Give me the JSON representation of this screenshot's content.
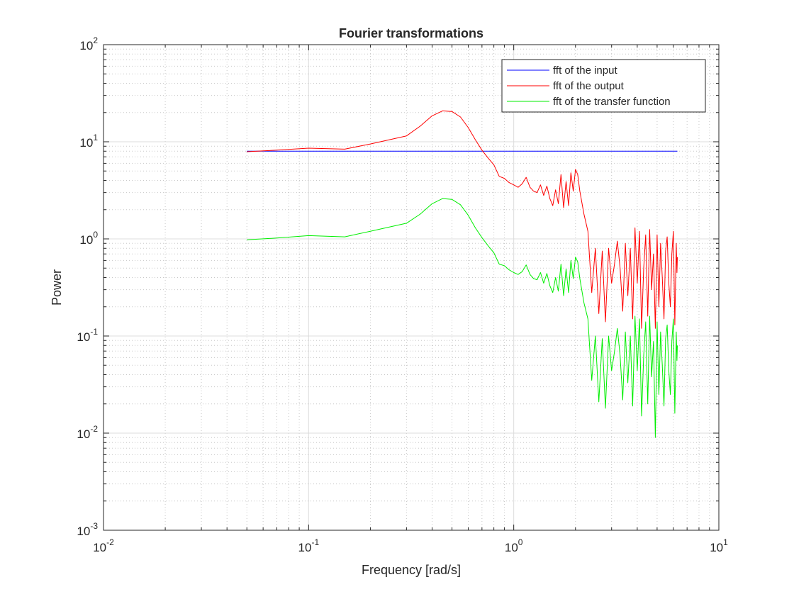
{
  "chart_data": {
    "type": "line",
    "title": "Fourier transformations",
    "xlabel": "Frequency [rad/s]",
    "ylabel": "Power",
    "xscale": "log",
    "yscale": "log",
    "xlim": [
      0.01,
      10
    ],
    "ylim": [
      0.001,
      100
    ],
    "grid": true,
    "minor_grid": true,
    "legend_location": "top-right",
    "x_ticks": [
      {
        "value": 0.01,
        "base": "10",
        "exp": "-2"
      },
      {
        "value": 0.1,
        "base": "10",
        "exp": "-1"
      },
      {
        "value": 1,
        "base": "10",
        "exp": "0"
      },
      {
        "value": 10,
        "base": "10",
        "exp": "1"
      }
    ],
    "y_ticks": [
      {
        "value": 0.001,
        "base": "10",
        "exp": "-3"
      },
      {
        "value": 0.01,
        "base": "10",
        "exp": "-2"
      },
      {
        "value": 0.1,
        "base": "10",
        "exp": "-1"
      },
      {
        "value": 1,
        "base": "10",
        "exp": "0"
      },
      {
        "value": 10,
        "base": "10",
        "exp": "1"
      },
      {
        "value": 100,
        "base": "10",
        "exp": "2"
      }
    ],
    "series": [
      {
        "name": "fft of the input",
        "color": "#0000ff",
        "x": [
          0.05,
          6.28
        ],
        "y": [
          8.0,
          8.0
        ]
      },
      {
        "name": "fft of the output",
        "color": "#ff0000",
        "x": [
          0.05,
          0.07,
          0.1,
          0.15,
          0.2,
          0.3,
          0.35,
          0.4,
          0.45,
          0.5,
          0.55,
          0.6,
          0.65,
          0.7,
          0.75,
          0.8,
          0.85,
          0.9,
          0.95,
          1.0,
          1.05,
          1.1,
          1.15,
          1.2,
          1.25,
          1.3,
          1.35,
          1.4,
          1.45,
          1.5,
          1.55,
          1.6,
          1.65,
          1.7,
          1.75,
          1.8,
          1.85,
          1.9,
          1.95,
          2.0,
          2.05,
          2.1,
          2.2,
          2.3,
          2.4,
          2.5,
          2.6,
          2.7,
          2.8,
          2.9,
          3.0,
          3.1,
          3.2,
          3.3,
          3.4,
          3.5,
          3.6,
          3.7,
          3.8,
          3.9,
          4.0,
          4.1,
          4.2,
          4.3,
          4.4,
          4.5,
          4.6,
          4.7,
          4.8,
          4.9,
          5.0,
          5.1,
          5.2,
          5.3,
          5.4,
          5.5,
          5.6,
          5.7,
          5.8,
          5.9,
          6.0,
          6.1,
          6.2,
          6.25,
          6.28
        ],
        "y": [
          7.9,
          8.2,
          8.6,
          8.4,
          9.5,
          11.5,
          14.5,
          18.5,
          20.8,
          20.5,
          18.0,
          14.0,
          10.5,
          8.2,
          6.8,
          5.8,
          4.4,
          4.2,
          3.8,
          3.6,
          3.4,
          3.7,
          4.3,
          3.4,
          3.1,
          3.0,
          3.6,
          2.8,
          3.5,
          2.6,
          2.2,
          3.2,
          2.3,
          4.6,
          2.1,
          3.9,
          2.2,
          4.8,
          3.1,
          5.2,
          4.6,
          3.1,
          1.8,
          1.2,
          0.28,
          0.8,
          0.17,
          0.75,
          0.14,
          0.8,
          0.35,
          0.55,
          0.95,
          0.5,
          0.18,
          0.9,
          0.26,
          0.8,
          0.15,
          1.3,
          0.35,
          1.2,
          0.12,
          0.5,
          1.1,
          0.16,
          1.25,
          0.3,
          0.7,
          0.12,
          1.1,
          0.2,
          0.9,
          0.4,
          0.15,
          0.75,
          1.05,
          0.35,
          0.2,
          0.7,
          1.2,
          0.13,
          0.9,
          0.45,
          0.65
        ]
      },
      {
        "name": "fft of the transfer function",
        "color": "#00ee00",
        "x": [
          0.05,
          0.07,
          0.1,
          0.15,
          0.2,
          0.3,
          0.35,
          0.4,
          0.45,
          0.5,
          0.55,
          0.6,
          0.65,
          0.7,
          0.75,
          0.8,
          0.85,
          0.9,
          0.95,
          1.0,
          1.05,
          1.1,
          1.15,
          1.2,
          1.25,
          1.3,
          1.35,
          1.4,
          1.45,
          1.5,
          1.55,
          1.6,
          1.65,
          1.7,
          1.75,
          1.8,
          1.85,
          1.9,
          1.95,
          2.0,
          2.05,
          2.1,
          2.2,
          2.3,
          2.4,
          2.5,
          2.6,
          2.7,
          2.8,
          2.9,
          3.0,
          3.1,
          3.2,
          3.3,
          3.4,
          3.5,
          3.6,
          3.7,
          3.8,
          3.9,
          4.0,
          4.1,
          4.2,
          4.3,
          4.4,
          4.5,
          4.6,
          4.7,
          4.8,
          4.9,
          5.0,
          5.1,
          5.2,
          5.3,
          5.4,
          5.5,
          5.6,
          5.7,
          5.8,
          5.9,
          6.0,
          6.1,
          6.2,
          6.25,
          6.28
        ],
        "y": [
          0.98,
          1.02,
          1.08,
          1.05,
          1.2,
          1.45,
          1.8,
          2.3,
          2.6,
          2.55,
          2.25,
          1.75,
          1.3,
          1.03,
          0.85,
          0.72,
          0.55,
          0.53,
          0.48,
          0.45,
          0.43,
          0.46,
          0.54,
          0.43,
          0.39,
          0.38,
          0.45,
          0.35,
          0.44,
          0.33,
          0.28,
          0.4,
          0.29,
          0.55,
          0.26,
          0.49,
          0.28,
          0.6,
          0.39,
          0.65,
          0.58,
          0.39,
          0.22,
          0.15,
          0.035,
          0.1,
          0.021,
          0.094,
          0.018,
          0.1,
          0.044,
          0.069,
          0.12,
          0.063,
          0.022,
          0.11,
          0.033,
          0.1,
          0.019,
          0.16,
          0.044,
          0.15,
          0.015,
          0.063,
          0.14,
          0.02,
          0.16,
          0.038,
          0.088,
          0.009,
          0.14,
          0.025,
          0.11,
          0.05,
          0.019,
          0.094,
          0.13,
          0.044,
          0.025,
          0.088,
          0.15,
          0.016,
          0.11,
          0.056,
          0.08
        ]
      }
    ]
  }
}
